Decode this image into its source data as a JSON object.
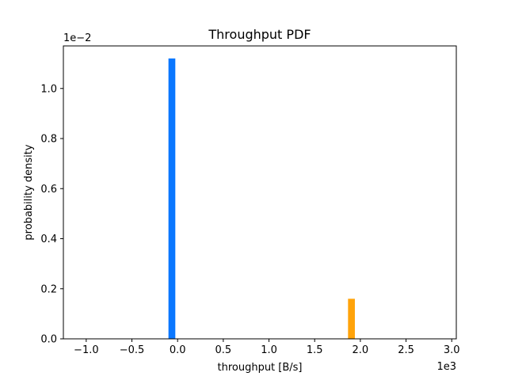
{
  "chart_data": {
    "type": "bar",
    "title": "Throughput PDF",
    "xlabel": "throughput [B/s]",
    "ylabel": "probability density",
    "x_multiplier": "1e3",
    "y_multiplier": "1e−2",
    "xlim": [
      -1.25,
      3.05
    ],
    "ylim": [
      0,
      1.17
    ],
    "x_ticks": [
      -1.0,
      -0.5,
      0.0,
      0.5,
      1.0,
      1.5,
      2.0,
      2.5,
      3.0
    ],
    "x_tick_labels": [
      "−1.0",
      "−0.5",
      "0.0",
      "0.5",
      "1.0",
      "1.5",
      "2.0",
      "2.5",
      "3.0"
    ],
    "y_ticks": [
      0.0,
      0.2,
      0.4,
      0.6,
      0.8,
      1.0
    ],
    "y_tick_labels": [
      "0.0",
      "0.2",
      "0.4",
      "0.6",
      "0.8",
      "1.0"
    ],
    "grid": false,
    "series": [
      {
        "x_start": -0.1,
        "x_end": -0.025,
        "value": 1.12,
        "color": "#0a77ff"
      },
      {
        "x_start": 1.865,
        "x_end": 1.94,
        "value": 0.16,
        "color": "#ffa30a"
      }
    ]
  }
}
